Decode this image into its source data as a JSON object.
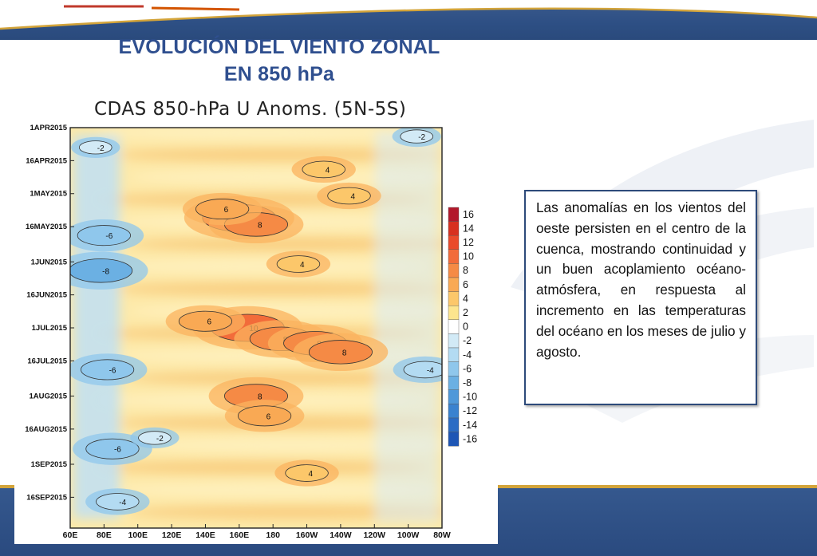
{
  "slide": {
    "title_line1": "EVOLUCIÓN DEL VIENTO ZONAL",
    "title_line2": "EN 850 hPa",
    "body_text": "Las anomalías en los vientos del oeste persisten en el centro de la cuenca, mostrando continuidad y un buen acoplamiento océano-atmósfera, en respuesta al incremento en las temperaturas del océano en los meses de julio y agosto."
  },
  "colors": {
    "title": "#2f4f8f",
    "band_blue": "#2d4f84",
    "band_gold": "#d3a43a"
  },
  "chart_data": {
    "type": "heatmap",
    "title": "CDAS 850-hPa U Anoms. (5N-5S)",
    "x_tick_labels": [
      "60E",
      "80E",
      "100E",
      "120E",
      "140E",
      "160E",
      "180",
      "160W",
      "140W",
      "120W",
      "100W",
      "80W"
    ],
    "y_tick_labels": [
      "1APR2015",
      "16APR2015",
      "1MAY2015",
      "16MAY2015",
      "1JUN2015",
      "16JUN2015",
      "1JUL2015",
      "16JUL2015",
      "1AUG2015",
      "16AUG2015",
      "1SEP2015",
      "16SEP2015"
    ],
    "colorbar_levels": [
      "16",
      "14",
      "12",
      "10",
      "8",
      "6",
      "4",
      "2",
      "0",
      "-2",
      "-4",
      "-6",
      "-8",
      "-10",
      "-12",
      "-14",
      "-16"
    ],
    "colorbar_colors": [
      "#b2182b",
      "#d7301f",
      "#ea4a2b",
      "#f26b3a",
      "#f58a45",
      "#f9a954",
      "#fcc76a",
      "#fde58e",
      "#ffffff",
      "#d2eaf6",
      "#b3dbf2",
      "#8fc7ec",
      "#6bb0e3",
      "#4f98d9",
      "#3a82cf",
      "#2b6cc4",
      "#1e56b5"
    ],
    "anomaly_cells": [
      {
        "lon": 160,
        "date": "2015-05-12",
        "value": 10
      },
      {
        "lon": 170,
        "date": "2015-05-15",
        "value": 8
      },
      {
        "lon": 150,
        "date": "2015-05-08",
        "value": 6
      },
      {
        "lon": 165,
        "date": "2015-07-01",
        "value": 10
      },
      {
        "lon": 185,
        "date": "2015-07-06",
        "value": 8
      },
      {
        "lon": 205,
        "date": "2015-07-08",
        "value": 8
      },
      {
        "lon": 220,
        "date": "2015-07-12",
        "value": 8
      },
      {
        "lon": 140,
        "date": "2015-06-28",
        "value": 6
      },
      {
        "lon": 170,
        "date": "2015-08-01",
        "value": 8
      },
      {
        "lon": 175,
        "date": "2015-08-10",
        "value": 6
      },
      {
        "lon": 195,
        "date": "2015-06-02",
        "value": 4
      },
      {
        "lon": 210,
        "date": "2015-04-20",
        "value": 4
      },
      {
        "lon": 225,
        "date": "2015-05-02",
        "value": 4
      },
      {
        "lon": 200,
        "date": "2015-09-05",
        "value": 4
      },
      {
        "lon": 80,
        "date": "2015-05-20",
        "value": -6
      },
      {
        "lon": 78,
        "date": "2015-06-05",
        "value": -8
      },
      {
        "lon": 82,
        "date": "2015-07-20",
        "value": -6
      },
      {
        "lon": 85,
        "date": "2015-08-25",
        "value": -6
      },
      {
        "lon": 88,
        "date": "2015-09-18",
        "value": -4
      },
      {
        "lon": 75,
        "date": "2015-04-10",
        "value": -2
      },
      {
        "lon": 265,
        "date": "2015-04-05",
        "value": -2
      },
      {
        "lon": 270,
        "date": "2015-07-20",
        "value": -4
      },
      {
        "lon": 110,
        "date": "2015-08-20",
        "value": -2
      }
    ]
  }
}
